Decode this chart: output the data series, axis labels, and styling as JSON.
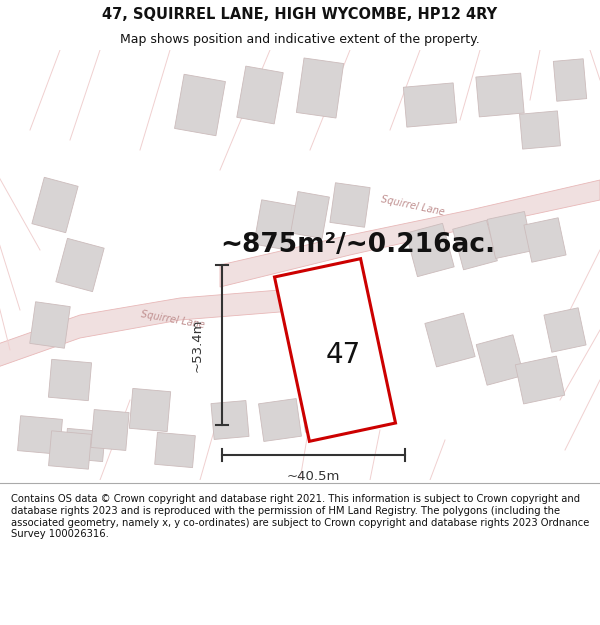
{
  "title": "47, SQUIRREL LANE, HIGH WYCOMBE, HP12 4RY",
  "subtitle": "Map shows position and indicative extent of the property.",
  "area_text": "~875m²/~0.216ac.",
  "number_label": "47",
  "dim_width": "~40.5m",
  "dim_height": "~53.4m",
  "footer": "Contains OS data © Crown copyright and database right 2021. This information is subject to Crown copyright and database rights 2023 and is reproduced with the permission of HM Land Registry. The polygons (including the associated geometry, namely x, y co-ordinates) are subject to Crown copyright and database rights 2023 Ordnance Survey 100026316.",
  "map_bg": "#f9f5f5",
  "road_color": "#e8b8b8",
  "road_fill": "#f0e0e0",
  "building_fill": "#d8d4d4",
  "building_edge": "#ccbcbc",
  "plot_line_color": "#f0d0d0",
  "highlight_color": "#cc0000",
  "dim_color": "#333333",
  "text_color": "#111111",
  "road_label_color": "#c09090",
  "title_fontsize": 10.5,
  "subtitle_fontsize": 9,
  "area_fontsize": 19,
  "number_fontsize": 20,
  "dim_fontsize": 9.5,
  "footer_fontsize": 7.2
}
